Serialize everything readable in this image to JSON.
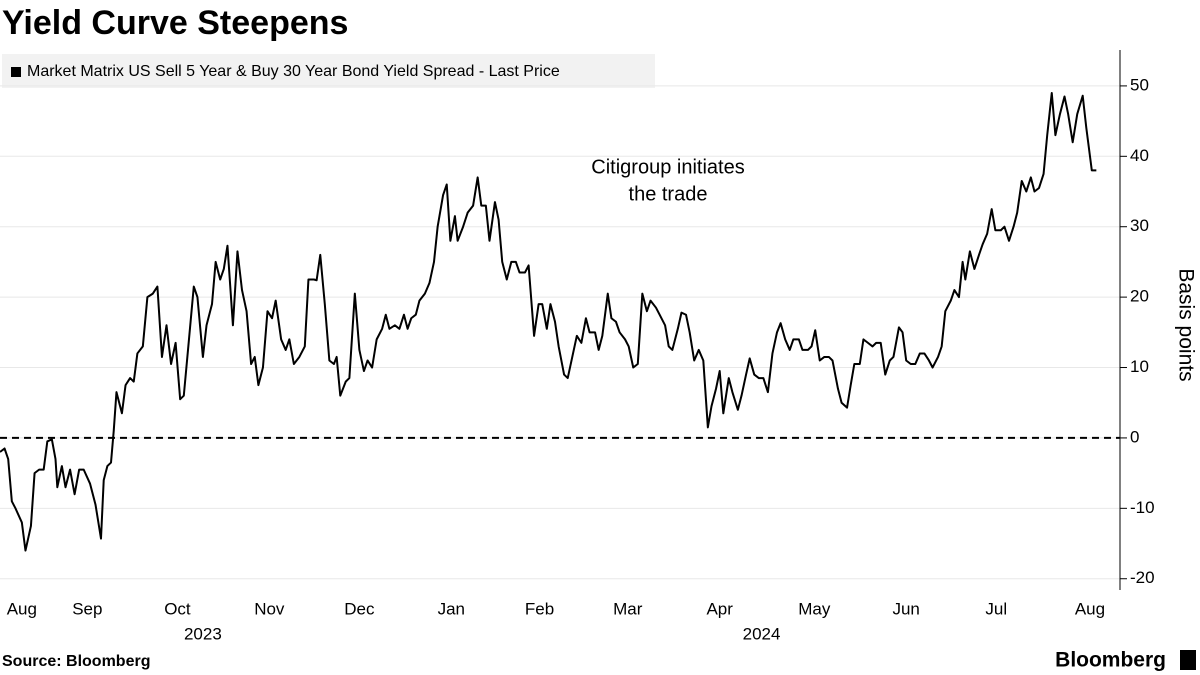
{
  "chart_data": {
    "type": "line",
    "title": "Yield Curve Steepens",
    "ylabel": "Basis points",
    "annotation": [
      "Citigroup initiates",
      "the trade"
    ],
    "source": "Source: Bloomberg",
    "logo": "Bloomberg",
    "grid": true,
    "hline": 0,
    "xlim": [
      0.53,
      12.84
    ],
    "ylim": [
      -21.6,
      55.1
    ],
    "yticks": [
      -20,
      -10,
      0,
      10,
      20,
      30,
      40,
      50
    ],
    "xticks": [
      {
        "value": 0.77,
        "label": "Aug"
      },
      {
        "value": 1.49,
        "label": "Sep"
      },
      {
        "value": 2.48,
        "label": "Oct"
      },
      {
        "value": 3.49,
        "label": "Nov"
      },
      {
        "value": 4.48,
        "label": "Dec"
      },
      {
        "value": 5.49,
        "label": "Jan"
      },
      {
        "value": 6.46,
        "label": "Feb"
      },
      {
        "value": 7.43,
        "label": "Mar"
      },
      {
        "value": 8.44,
        "label": "Apr"
      },
      {
        "value": 9.48,
        "label": "May"
      },
      {
        "value": 10.49,
        "label": "Jun"
      },
      {
        "value": 11.48,
        "label": "Jul"
      },
      {
        "value": 12.51,
        "label": "Aug"
      }
    ],
    "x_groups": [
      {
        "value": 2.76,
        "label": "2023"
      },
      {
        "value": 8.9,
        "label": "2024"
      }
    ],
    "x": [
      0.53,
      0.58,
      0.62,
      0.66,
      0.7,
      0.77,
      0.81,
      0.87,
      0.91,
      0.96,
      1.01,
      1.05,
      1.1,
      1.14,
      1.16,
      1.21,
      1.25,
      1.3,
      1.35,
      1.4,
      1.45,
      1.52,
      1.58,
      1.64,
      1.67,
      1.71,
      1.75,
      1.78,
      1.81,
      1.87,
      1.91,
      1.96,
      2.0,
      2.04,
      2.1,
      2.15,
      2.21,
      2.26,
      2.31,
      2.36,
      2.41,
      2.46,
      2.51,
      2.55,
      2.6,
      2.66,
      2.7,
      2.76,
      2.8,
      2.86,
      2.9,
      2.95,
      2.99,
      3.03,
      3.09,
      3.14,
      3.19,
      3.24,
      3.29,
      3.33,
      3.37,
      3.42,
      3.47,
      3.52,
      3.56,
      3.62,
      3.67,
      3.71,
      3.76,
      3.82,
      3.88,
      3.92,
      3.98,
      4.01,
      4.05,
      4.1,
      4.15,
      4.2,
      4.23,
      4.27,
      4.33,
      4.37,
      4.43,
      4.48,
      4.53,
      4.57,
      4.62,
      4.67,
      4.73,
      4.77,
      4.81,
      4.87,
      4.92,
      4.97,
      5.01,
      5.05,
      5.1,
      5.14,
      5.2,
      5.25,
      5.3,
      5.34,
      5.4,
      5.44,
      5.48,
      5.53,
      5.56,
      5.62,
      5.67,
      5.73,
      5.78,
      5.82,
      5.87,
      5.91,
      5.97,
      6.01,
      6.05,
      6.1,
      6.15,
      6.2,
      6.24,
      6.3,
      6.34,
      6.4,
      6.45,
      6.49,
      6.54,
      6.58,
      6.63,
      6.67,
      6.73,
      6.77,
      6.82,
      6.87,
      6.92,
      6.97,
      7.01,
      7.07,
      7.11,
      7.15,
      7.21,
      7.25,
      7.3,
      7.34,
      7.4,
      7.44,
      7.49,
      7.54,
      7.59,
      7.64,
      7.68,
      7.74,
      7.78,
      7.84,
      7.88,
      7.92,
      7.98,
      8.02,
      8.07,
      8.11,
      8.16,
      8.21,
      8.26,
      8.31,
      8.35,
      8.4,
      8.44,
      8.48,
      8.54,
      8.58,
      8.64,
      8.68,
      8.73,
      8.77,
      8.82,
      8.87,
      8.92,
      8.97,
      9.02,
      9.07,
      9.11,
      9.16,
      9.21,
      9.25,
      9.31,
      9.35,
      9.41,
      9.45,
      9.49,
      9.54,
      9.59,
      9.64,
      9.68,
      9.74,
      9.78,
      9.84,
      9.88,
      9.92,
      9.98,
      10.02,
      10.07,
      10.12,
      10.16,
      10.21,
      10.26,
      10.31,
      10.35,
      10.41,
      10.45,
      10.49,
      10.54,
      10.59,
      10.64,
      10.69,
      10.74,
      10.78,
      10.84,
      10.88,
      10.92,
      10.98,
      11.02,
      11.07,
      11.11,
      11.14,
      11.19,
      11.24,
      11.29,
      11.33,
      11.38,
      11.43,
      11.47,
      11.53,
      11.57,
      11.62,
      11.67,
      11.71,
      11.76,
      11.81,
      11.86,
      11.9,
      11.95,
      12.0,
      12.04,
      12.09,
      12.13,
      12.18,
      12.23,
      12.27,
      12.32,
      12.37,
      12.43,
      12.47,
      12.53,
      12.58
    ],
    "series": [
      {
        "name": "Market Matrix US Sell 5 Year & Buy 30 Year Bond Yield Spread - Last Price",
        "color": "#000000",
        "values": [
          -2,
          -1.5,
          -3,
          -9,
          -10,
          -12,
          -16,
          -12.5,
          -5,
          -4.5,
          -4.5,
          -0.5,
          -0.2,
          -3,
          -7,
          -4,
          -7,
          -4.5,
          -8,
          -4.5,
          -4.5,
          -6.5,
          -9.5,
          -14.3,
          -6,
          -4,
          -3.5,
          1,
          6.5,
          3.5,
          7.5,
          8.5,
          8,
          12,
          13,
          20,
          20.5,
          21.5,
          11.5,
          16,
          10.5,
          13.5,
          5.5,
          6,
          13,
          21.5,
          20,
          11.5,
          16,
          19,
          25,
          22.5,
          24,
          27.3,
          16,
          26.5,
          21,
          18,
          10.5,
          11.5,
          7.5,
          10,
          18,
          17,
          19.5,
          14,
          12.5,
          14,
          10.5,
          11.5,
          13,
          22.5,
          22.5,
          22.4,
          26,
          19,
          11,
          10.5,
          11.5,
          6,
          8,
          8.5,
          20.5,
          12.5,
          9.5,
          11,
          10,
          14,
          15.5,
          17.5,
          15.5,
          16,
          15.5,
          17.5,
          15.5,
          17,
          17.5,
          19.5,
          20.5,
          22,
          25,
          30,
          34.5,
          36,
          28,
          31.5,
          28,
          30,
          32,
          33,
          37,
          33,
          33,
          28,
          33.5,
          31,
          25,
          22.5,
          25,
          25,
          23.5,
          23.5,
          24.5,
          14.5,
          19,
          19,
          15.5,
          19,
          16.5,
          13,
          9,
          8.5,
          11.5,
          14.5,
          13.5,
          17,
          15,
          15,
          12.5,
          14.5,
          20.5,
          17,
          16.5,
          15,
          14,
          13,
          10,
          10.5,
          20.5,
          18,
          19.5,
          18.5,
          17.5,
          16,
          13,
          12.5,
          15.5,
          17.8,
          17.5,
          15,
          11,
          12.5,
          11,
          1.5,
          4.5,
          7,
          9.5,
          3.5,
          8.5,
          6.5,
          4,
          6,
          9,
          11.3,
          9,
          8.5,
          8.5,
          6.5,
          12,
          15,
          16.3,
          14,
          12.5,
          14,
          14,
          12.5,
          12.5,
          13,
          15.3,
          11,
          11.5,
          11.5,
          11,
          7,
          5,
          4.3,
          7.5,
          10.5,
          10.5,
          14,
          13.5,
          13,
          13.5,
          13.5,
          9,
          11,
          11.5,
          15.7,
          15,
          11,
          10.5,
          10.5,
          12,
          12,
          11,
          10,
          11.5,
          13,
          18,
          19.5,
          21,
          20,
          25,
          22.5,
          26.5,
          24,
          26,
          27.5,
          29,
          32.5,
          29.5,
          29.5,
          30,
          28,
          30,
          32,
          36.5,
          35,
          37,
          35,
          35.5,
          37.5,
          43,
          49,
          43,
          46,
          48.5,
          46,
          42,
          46,
          48.6,
          44,
          38,
          38
        ]
      }
    ]
  }
}
